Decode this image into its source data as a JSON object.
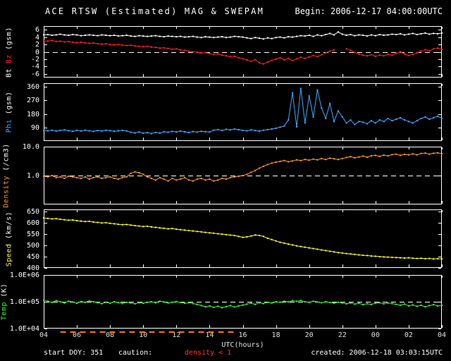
{
  "header": {
    "title": "ACE RTSW (Estimated) MAG & SWEPAM",
    "begin": "Begin: 2006-12-17 04:00:00UTC"
  },
  "footer": {
    "start_doy": "start DOY: 351",
    "caution_label": "caution:",
    "caution_value": "density < 1",
    "created": "created: 2006-12-18 03:03:15UTC"
  },
  "colors": {
    "background": "#000000",
    "axis": "#ffffff",
    "bt": "#ffffff",
    "bz": "#ff2222",
    "phi": "#44aaff",
    "density": "#ff9933",
    "speed": "#ffff33",
    "temp": "#33ff33",
    "caution_text": "#ff3333",
    "caution_dashes": "#ff7700"
  },
  "chart_data": {
    "type": "line",
    "title": "ACE RTSW (Estimated) MAG & SWEPAM",
    "x": {
      "title": "UTC(hours)",
      "start": 4,
      "step": 0.25,
      "end": 28,
      "tick_values": [
        4,
        6,
        8,
        10,
        12,
        14,
        16,
        18,
        20,
        22,
        24,
        26,
        28
      ],
      "tick_labels": [
        "04",
        "06",
        "08",
        "10",
        "12",
        "14",
        "16",
        "18",
        "20",
        "22",
        "00",
        "02",
        "04"
      ]
    },
    "caution_span_hours": [
      5,
      15.5
    ],
    "panels": [
      {
        "id": "mag",
        "axis_label": [
          {
            "text": "Bt ",
            "color": "#ffffff"
          },
          {
            "text": "Bz ",
            "color": "#ff2222"
          },
          {
            "text": "(gsm)",
            "color": "#ffffff"
          }
        ],
        "scale": "linear",
        "ylim": [
          -7,
          7
        ],
        "refline": 0,
        "yticks": [
          {
            "v": 6,
            "t": "6"
          },
          {
            "v": 4,
            "t": "4"
          },
          {
            "v": 2,
            "t": "2"
          },
          {
            "v": 0,
            "t": "0"
          },
          {
            "v": -2,
            "t": "-2"
          },
          {
            "v": -4,
            "t": "-4"
          },
          {
            "v": -6,
            "t": "-6"
          }
        ],
        "series": [
          {
            "name": "Bt",
            "color": "#ffffff",
            "values": [
              4.6,
              4.7,
              4.5,
              4.6,
              4.8,
              4.6,
              4.5,
              4.7,
              4.6,
              4.4,
              4.5,
              4.6,
              4.5,
              4.4,
              4.6,
              4.5,
              4.4,
              4.5,
              4.3,
              4.4,
              4.5,
              4.3,
              4.2,
              4.4,
              4.3,
              4.2,
              4.3,
              4.4,
              4.2,
              4.1,
              4.3,
              4.2,
              4.1,
              4.2,
              4.0,
              4.1,
              4.2,
              4.0,
              3.9,
              4.1,
              4.0,
              3.9,
              4.0,
              4.1,
              3.9,
              4.0,
              4.2,
              4.1,
              4.0,
              3.8,
              3.6,
              3.9,
              3.7,
              3.5,
              3.8,
              3.6,
              3.9,
              4.0,
              3.8,
              4.1,
              4.0,
              4.2,
              4.4,
              4.3,
              4.5,
              4.2,
              4.6,
              4.4,
              4.7,
              5.0,
              4.6,
              5.4,
              4.8,
              4.5,
              4.7,
              4.4,
              4.6,
              4.5,
              4.3,
              4.6,
              4.4,
              4.7,
              4.5,
              4.6,
              4.8,
              4.7,
              4.9,
              4.6,
              4.8,
              5.0,
              4.7,
              4.9,
              5.1,
              4.8,
              5.0,
              4.9,
              5.1
            ]
          },
          {
            "name": "Bz",
            "color": "#ff2222",
            "values": [
              3.0,
              2.9,
              3.1,
              2.8,
              2.9,
              2.7,
              2.8,
              2.6,
              2.5,
              2.6,
              2.4,
              2.3,
              2.4,
              2.2,
              2.1,
              2.2,
              2.0,
              1.9,
              2.0,
              1.8,
              1.7,
              1.8,
              1.6,
              1.5,
              1.4,
              1.5,
              1.3,
              1.2,
              1.0,
              1.1,
              0.9,
              0.7,
              0.8,
              0.5,
              0.4,
              0.2,
              0.0,
              -0.1,
              -0.3,
              -0.2,
              -0.5,
              -0.7,
              -0.6,
              -0.9,
              -1.1,
              -1.3,
              -1.2,
              -1.6,
              -1.9,
              -2.2,
              -2.6,
              -2.1,
              -3.0,
              -3.3,
              -2.8,
              -2.3,
              -2.0,
              -1.6,
              -2.2,
              -1.8,
              -2.4,
              -1.9,
              -1.5,
              -1.8,
              -1.4,
              -1.0,
              -1.3,
              -0.8,
              -0.3,
              0.2,
              0.5,
              null,
              null,
              0.8,
              0.4,
              -0.2,
              -0.6,
              -0.9,
              -1.1,
              -0.8,
              -1.2,
              -0.9,
              -1.1,
              -0.7,
              -0.9,
              -0.4,
              0.0,
              -0.6,
              -1.0,
              -0.7,
              -0.3,
              0.2,
              0.6,
              0.3,
              0.8,
              1.0,
              0.7
            ]
          }
        ]
      },
      {
        "id": "phi",
        "axis_label": [
          {
            "text": "Phi ",
            "color": "#44aaff"
          },
          {
            "text": "(gsm)",
            "color": "#ffffff"
          }
        ],
        "scale": "linear",
        "ylim": [
          0,
          385
        ],
        "refline": null,
        "yticks": [
          {
            "v": 360,
            "t": "360"
          },
          {
            "v": 270,
            "t": "270"
          },
          {
            "v": 180,
            "t": "180"
          },
          {
            "v": 90,
            "t": "90"
          }
        ],
        "series": [
          {
            "name": "Phi",
            "color": "#44aaff",
            "values": [
              70,
              68,
              72,
              66,
              70,
              74,
              69,
              65,
              71,
              67,
              72,
              68,
              64,
              70,
              66,
              72,
              69,
              65,
              68,
              71,
              67,
              58,
              54,
              60,
              52,
              56,
              50,
              57,
              53,
              62,
              58,
              64,
              60,
              66,
              61,
              57,
              63,
              59,
              65,
              62,
              60,
              72,
              76,
              70,
              78,
              74,
              80,
              75,
              71,
              68,
              74,
              70,
              66,
              72,
              76,
              80,
              85,
              92,
              100,
              140,
              320,
              95,
              350,
              120,
              300,
              160,
              340,
              220,
              150,
              250,
              130,
              200,
              160,
              120,
              140,
              110,
              130,
              125,
              115,
              135,
              120,
              140,
              130,
              150,
              135,
              145,
              155,
              140,
              130,
              120,
              135,
              150,
              160,
              145,
              155,
              165,
              150
            ]
          }
        ]
      },
      {
        "id": "density",
        "axis_label": [
          {
            "text": "Density ",
            "color": "#ff9933"
          },
          {
            "text": "(/cm3)",
            "color": "#ffffff"
          }
        ],
        "scale": "log",
        "ylim": [
          0.1,
          10
        ],
        "refline": 1,
        "yticks": [
          {
            "v": 10,
            "t": "10.0"
          },
          {
            "v": 1,
            "t": "1.0"
          }
        ],
        "series": [
          {
            "name": "Density",
            "color": "#ff9933",
            "values": [
              0.95,
              0.9,
              1.0,
              0.85,
              0.9,
              0.8,
              0.95,
              0.9,
              0.85,
              0.8,
              0.9,
              0.75,
              0.85,
              0.9,
              0.8,
              0.85,
              0.9,
              0.8,
              0.75,
              0.85,
              0.9,
              1.2,
              1.35,
              1.25,
              1.1,
              0.9,
              0.8,
              0.7,
              0.85,
              0.75,
              0.65,
              0.8,
              0.7,
              0.75,
              0.85,
              0.7,
              0.65,
              0.75,
              0.8,
              0.7,
              0.75,
              0.65,
              0.7,
              0.8,
              0.75,
              0.85,
              0.9,
              0.95,
              1.0,
              1.1,
              1.3,
              1.5,
              1.8,
              2.1,
              2.4,
              2.7,
              2.9,
              3.1,
              3.3,
              3.0,
              3.2,
              3.5,
              3.3,
              3.6,
              3.4,
              3.7,
              3.5,
              3.9,
              3.6,
              4.0,
              3.8,
              3.6,
              3.9,
              4.2,
              4.5,
              4.1,
              4.4,
              4.7,
              4.3,
              4.8,
              5.0,
              4.6,
              5.1,
              4.8,
              5.3,
              5.5,
              5.0,
              5.4,
              5.2,
              5.6,
              5.2,
              5.8,
              6.0,
              5.5,
              5.9,
              6.1,
              5.7
            ]
          }
        ]
      },
      {
        "id": "speed",
        "axis_label": [
          {
            "text": "Speed ",
            "color": "#ffff33"
          },
          {
            "text": "(km/s)",
            "color": "#ffffff"
          }
        ],
        "scale": "linear",
        "ylim": [
          400,
          660
        ],
        "refline": null,
        "yticks": [
          {
            "v": 650,
            "t": "650"
          },
          {
            "v": 600,
            "t": "600"
          },
          {
            "v": 550,
            "t": "550"
          },
          {
            "v": 500,
            "t": "500"
          },
          {
            "v": 450,
            "t": "450"
          },
          {
            "v": 400,
            "t": "400"
          }
        ],
        "series": [
          {
            "name": "Speed",
            "color": "#ffff33",
            "values": [
              622,
              620,
              618,
              619,
              616,
              614,
              612,
              613,
              610,
              608,
              606,
              607,
              604,
              602,
              600,
              601,
              598,
              596,
              594,
              592,
              593,
              590,
              588,
              586,
              584,
              585,
              582,
              580,
              578,
              576,
              574,
              575,
              572,
              570,
              568,
              566,
              564,
              562,
              560,
              558,
              556,
              554,
              552,
              550,
              548,
              546,
              544,
              540,
              536,
              538,
              542,
              546,
              544,
              540,
              532,
              526,
              520,
              514,
              510,
              506,
              502,
              498,
              495,
              492,
              489,
              486,
              483,
              480,
              477,
              474,
              471,
              468,
              466,
              464,
              462,
              460,
              458,
              456,
              455,
              453,
              452,
              450,
              449,
              448,
              447,
              446,
              445,
              444,
              445,
              443,
              442,
              443,
              441,
              442,
              440,
              441,
              440
            ]
          }
        ]
      },
      {
        "id": "temp",
        "axis_label": [
          {
            "text": "Temp ",
            "color": "#33ff33"
          },
          {
            "text": "(K)",
            "color": "#ffffff"
          }
        ],
        "scale": "log",
        "ylim": [
          10000,
          1000000
        ],
        "refline": 100000,
        "yticks": [
          {
            "v": 1000000,
            "t": "1.0E+06"
          },
          {
            "v": 100000,
            "t": "1.0E+05"
          },
          {
            "v": 10000,
            "t": "1.0E+04"
          }
        ],
        "series": [
          {
            "name": "Temp",
            "color": "#33ff33",
            "values": [
              115000,
              105000,
              95000,
              110000,
              100000,
              90000,
              105000,
              98000,
              88000,
              102000,
              95000,
              108000,
              100000,
              92000,
              85000,
              96000,
              88000,
              100000,
              93000,
              86000,
              95000,
              90000,
              84000,
              92000,
              88000,
              95000,
              100000,
              92000,
              105000,
              98000,
              90000,
              96000,
              102000,
              94000,
              88000,
              92000,
              86000,
              80000,
              72000,
              65000,
              70000,
              62000,
              68000,
              60000,
              66000,
              72000,
              64000,
              70000,
              75000,
              82000,
              88000,
              80000,
              92000,
              86000,
              95000,
              90000,
              100000,
              96000,
              105000,
              98000,
              110000,
              104000,
              112000,
              100000,
              95000,
              105000,
              98000,
              92000,
              100000,
              94000,
              88000,
              96000,
              90000,
              84000,
              90000,
              82000,
              88000,
              78000,
              85000,
              80000,
              88000,
              92000,
              84000,
              90000,
              86000,
              80000,
              74000,
              82000,
              70000,
              76000,
              68000,
              74000,
              65000,
              72000,
              78000,
              70000,
              74000
            ]
          }
        ]
      }
    ]
  }
}
